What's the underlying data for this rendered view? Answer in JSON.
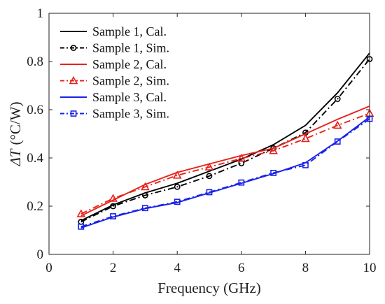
{
  "chart_data": {
    "type": "line",
    "title": "",
    "xlabel": "Frequency (GHz)",
    "ylabel_symbol": "ΔT",
    "ylabel_unit": "(°C/W)",
    "xlim": [
      0,
      10
    ],
    "ylim": [
      0,
      1
    ],
    "xticks": [
      0,
      2,
      4,
      6,
      8,
      10
    ],
    "yticks": [
      0,
      0.2,
      0.4,
      0.6,
      0.8,
      1
    ],
    "ytick_labels": [
      "0",
      "0.2",
      "0.4",
      "0.6",
      "0.8",
      "1"
    ],
    "grid": false,
    "legend_position": "top-left",
    "series": [
      {
        "name": "Sample 1, Cal.",
        "color": "#000000",
        "style": "solid",
        "marker": "none",
        "x": [
          1,
          2,
          3,
          4,
          5,
          6,
          7,
          8,
          9,
          10
        ],
        "y": [
          0.14,
          0.205,
          0.255,
          0.295,
          0.345,
          0.395,
          0.455,
          0.535,
          0.67,
          0.835
        ]
      },
      {
        "name": "Sample 1, Sim.",
        "color": "#000000",
        "style": "dashdot",
        "marker": "circle",
        "x": [
          1,
          2,
          3,
          4,
          5,
          6,
          7,
          8,
          9,
          10
        ],
        "y": [
          0.135,
          0.2,
          0.245,
          0.28,
          0.325,
          0.378,
          0.44,
          0.505,
          0.645,
          0.81
        ]
      },
      {
        "name": "Sample 2, Cal.",
        "color": "#e8221c",
        "style": "solid",
        "marker": "none",
        "x": [
          1,
          2,
          3,
          4,
          5,
          6,
          7,
          8,
          9,
          10
        ],
        "y": [
          0.16,
          0.225,
          0.29,
          0.34,
          0.375,
          0.41,
          0.44,
          0.5,
          0.56,
          0.615
        ]
      },
      {
        "name": "Sample 2, Sim.",
        "color": "#e8221c",
        "style": "dashdot",
        "marker": "triangle",
        "x": [
          1,
          2,
          3,
          4,
          5,
          6,
          7,
          8,
          9,
          10
        ],
        "y": [
          0.168,
          0.232,
          0.28,
          0.328,
          0.362,
          0.398,
          0.43,
          0.48,
          0.535,
          0.585
        ]
      },
      {
        "name": "Sample 3, Cal.",
        "color": "#1a22e8",
        "style": "solid",
        "marker": "none",
        "x": [
          1,
          2,
          3,
          4,
          5,
          6,
          7,
          8,
          9,
          10
        ],
        "y": [
          0.11,
          0.155,
          0.19,
          0.215,
          0.255,
          0.295,
          0.335,
          0.38,
          0.47,
          0.57
        ]
      },
      {
        "name": "Sample 3, Sim.",
        "color": "#1a22e8",
        "style": "dashdot",
        "marker": "square",
        "x": [
          1,
          2,
          3,
          4,
          5,
          6,
          7,
          8,
          9,
          10
        ],
        "y": [
          0.115,
          0.158,
          0.192,
          0.218,
          0.258,
          0.298,
          0.338,
          0.37,
          0.468,
          0.562
        ]
      }
    ]
  }
}
